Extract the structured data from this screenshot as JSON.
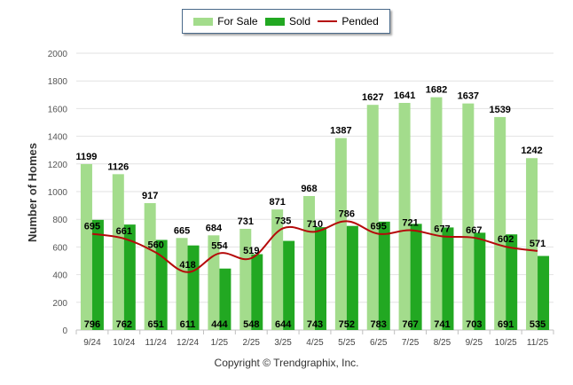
{
  "chart_data": {
    "type": "bar",
    "title": "",
    "xlabel": "",
    "ylabel": "Number of Homes",
    "ylim": [
      0,
      2000
    ],
    "yticks": [
      "0",
      "200",
      "400",
      "600",
      "800",
      "1000",
      "1200",
      "1400",
      "1600",
      "1800",
      "2000"
    ],
    "categories": [
      "9/24",
      "10/24",
      "11/24",
      "12/24",
      "1/25",
      "2/25",
      "3/25",
      "4/25",
      "5/25",
      "6/25",
      "7/25",
      "8/25",
      "9/25",
      "10/25",
      "11/25"
    ],
    "series": [
      {
        "name": "For Sale",
        "kind": "bar",
        "color": "#a3dc8c",
        "values": [
          1199,
          1126,
          917,
          665,
          684,
          731,
          871,
          968,
          1387,
          1627,
          1641,
          1682,
          1637,
          1539,
          1242
        ]
      },
      {
        "name": "Sold",
        "kind": "bar",
        "color": "#22a822",
        "values": [
          796,
          762,
          651,
          611,
          444,
          548,
          644,
          743,
          752,
          783,
          767,
          741,
          703,
          691,
          535
        ]
      },
      {
        "name": "Pended",
        "kind": "line",
        "color": "#b50a0a",
        "values": [
          695,
          661,
          560,
          418,
          554,
          519,
          735,
          710,
          786,
          695,
          721,
          677,
          667,
          602,
          571
        ]
      }
    ],
    "legend_position": "top-center",
    "grid": true
  },
  "legend": {
    "for_sale": "For Sale",
    "sold": "Sold",
    "pended": "Pended"
  },
  "footer": {
    "copyright": "Copyright © Trendgraphix, Inc."
  }
}
